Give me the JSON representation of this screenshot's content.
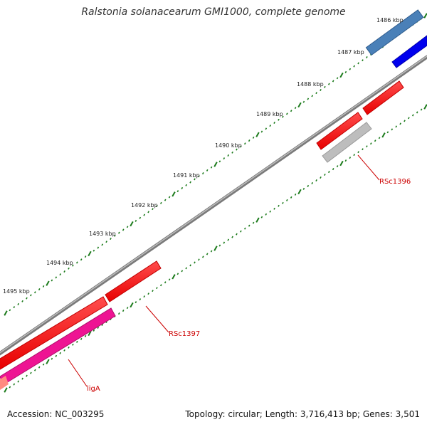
{
  "title": "Ralstonia solanacearum GMI1000, complete genome",
  "footer": {
    "accession": "Accession: NC_003295",
    "summary": "Topology: circular; Length: 3,716,413 bp; Genes: 3,501"
  },
  "kbp_labels": [
    "1486 kbp",
    "1487 kbp",
    "1488 kbp",
    "1489 kbp",
    "1490 kbp",
    "1491 kbp",
    "1492 kbp",
    "1493 kbp",
    "1494 kbp",
    "1495 kbp"
  ],
  "gene_labels": {
    "rsc1396": "RSc1396",
    "rsc1397": "RSc1397",
    "liga": "ligA"
  },
  "colors": {
    "backbone": "#7a7a7a",
    "tick": "#1a7a1a",
    "gene_red": "#ff0000",
    "gene_blue": "#0000ee",
    "gene_steelblue": "#4a80b8",
    "gene_gray": "#bdbdbd",
    "gene_magenta": "#ee1493",
    "gene_salmon": "#ff8a80",
    "label_red": "#cc0000"
  }
}
